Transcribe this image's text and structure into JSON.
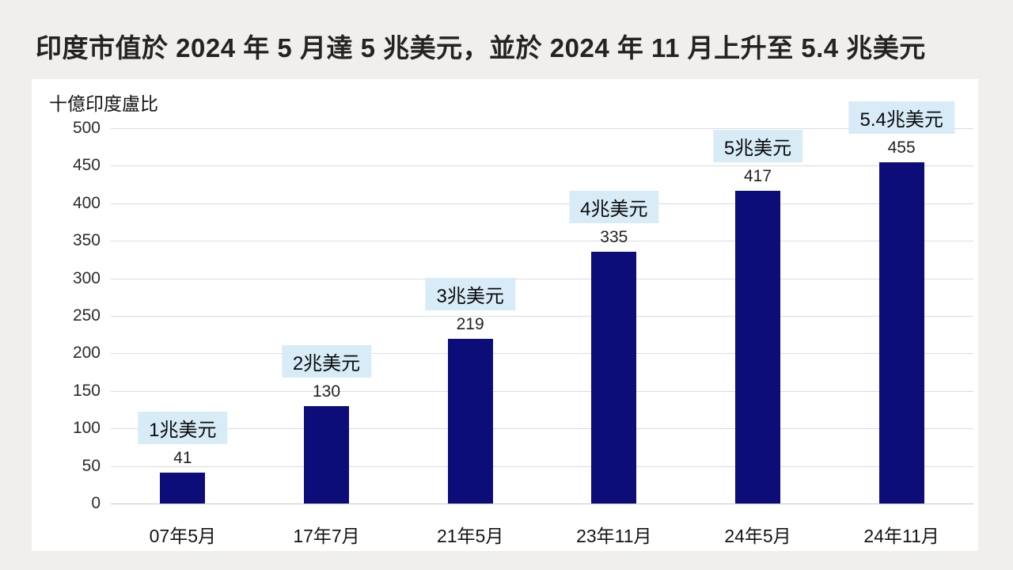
{
  "chart_data": {
    "type": "bar",
    "title": "印度市值於 2024 年 5 月達 5 兆美元，並於 2024 年 11 月上升至 5.4 兆美元",
    "unit_label": "十億印度盧比",
    "categories": [
      "07年5月",
      "17年7月",
      "21年5月",
      "23年11月",
      "24年5月",
      "24年11月"
    ],
    "values": [
      41,
      130,
      219,
      335,
      417,
      455
    ],
    "annotations": [
      "1兆美元",
      "2兆美元",
      "3兆美元",
      "4兆美元",
      "5兆美元",
      "5.4兆美元"
    ],
    "ylim": [
      0,
      500
    ],
    "ytick_step": 50,
    "grid": true,
    "legend": "none",
    "colors": {
      "bar": "#0d0d7a",
      "annotation_bg": "#d8ecf8",
      "grid": "#dcdcdc",
      "axis_line": "#c8c8c8",
      "page_bg": "#f0efed",
      "panel_bg": "#ffffff",
      "title_text": "#262220",
      "text": "#1f1f1f"
    }
  }
}
